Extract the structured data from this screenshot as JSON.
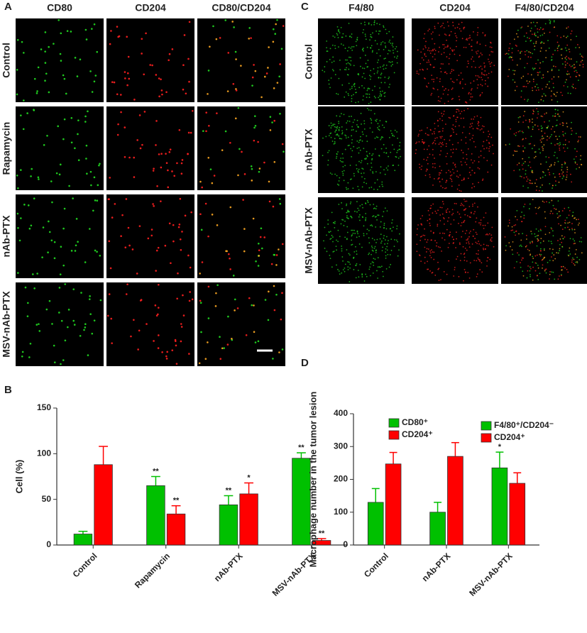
{
  "panel_labels": [
    "A",
    "B",
    "C",
    "D"
  ],
  "panel_a": {
    "columns": [
      "CD80",
      "CD204",
      "CD80/CD204"
    ],
    "rows": [
      "Control",
      "Rapamycin",
      "nAb-PTX",
      "MSV-nAb-PTX"
    ]
  },
  "panel_c": {
    "columns": [
      "F4/80",
      "CD204",
      "F4/80/CD204"
    ],
    "rows": [
      "Control",
      "nAb-PTX",
      "MSV-nAb-PTX"
    ]
  },
  "chart_data": [
    {
      "type": "bar",
      "y_label": "Cell  (%)",
      "categories": [
        "Control",
        "Rapamycin",
        "nAb-PTX",
        "MSV-nAb-PTX"
      ],
      "series": [
        {
          "name": "CD80⁺",
          "color": "#00c000",
          "values": [
            12,
            65,
            44,
            95
          ],
          "errors": [
            3,
            10,
            10,
            6
          ],
          "significance": [
            null,
            "**",
            "**",
            "**"
          ]
        },
        {
          "name": "CD204⁺",
          "color": "#ff0000",
          "values": [
            88,
            34,
            56,
            5
          ],
          "errors": [
            20,
            9,
            12,
            2
          ],
          "significance": [
            null,
            "**",
            "*",
            "**"
          ]
        }
      ],
      "ylim": [
        0,
        150
      ],
      "yticks": [
        0,
        50,
        100,
        150
      ]
    },
    {
      "type": "bar",
      "y_label": "Macrophage number in the tumor lesion",
      "categories": [
        "Control",
        "nAb-PTX",
        "MSV-nAb-PTX"
      ],
      "series": [
        {
          "name": "F4/80⁺/CD204⁻",
          "color": "#00c000",
          "values": [
            130,
            100,
            235
          ],
          "errors": [
            42,
            30,
            48
          ],
          "significance": [
            null,
            null,
            "*"
          ]
        },
        {
          "name": "CD204⁺",
          "color": "#ff0000",
          "values": [
            247,
            270,
            188
          ],
          "errors": [
            35,
            42,
            32
          ],
          "significance": [
            null,
            null,
            null
          ]
        }
      ],
      "ylim": [
        0,
        400
      ],
      "yticks": [
        0,
        100,
        200,
        300,
        400
      ]
    }
  ]
}
